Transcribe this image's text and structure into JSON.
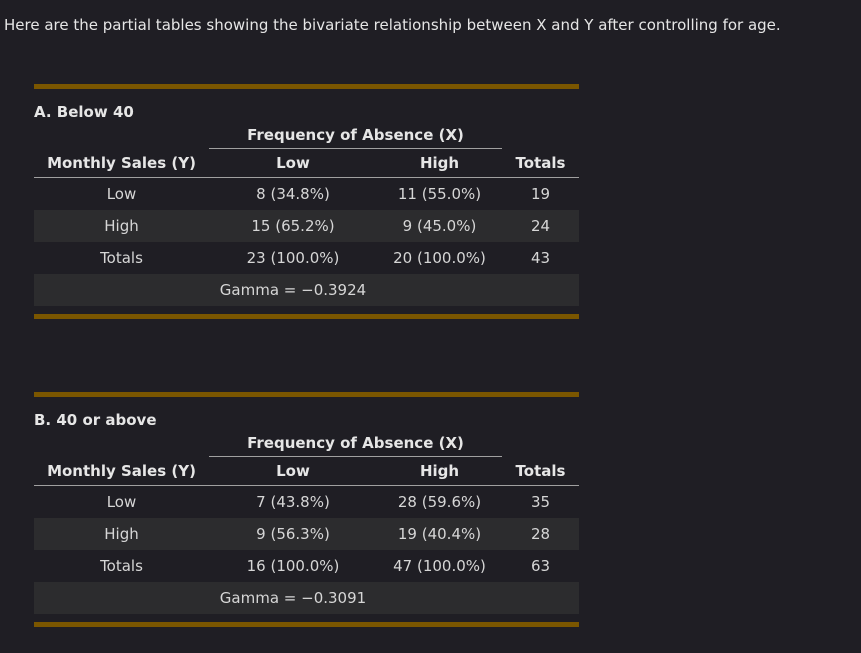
{
  "intro": "Here are the partial tables showing the bivariate relationship between X and Y after controlling for age.",
  "tables": [
    {
      "title": "A. Below 40",
      "spanner": "Frequency of Absence (X)",
      "headers": [
        "Monthly Sales (Y)",
        "Low",
        "High",
        "Totals"
      ],
      "rows": [
        [
          "Low",
          "8 (34.8%)",
          "11 (55.0%)",
          "19"
        ],
        [
          "High",
          "15 (65.2%)",
          "9 (45.0%)",
          "24"
        ],
        [
          "Totals",
          "23 (100.0%)",
          "20 (100.0%)",
          "43"
        ]
      ],
      "gamma": "Gamma = −0.3924"
    },
    {
      "title": "B. 40 or above",
      "spanner": "Frequency of Absence (X)",
      "headers": [
        "Monthly Sales (Y)",
        "Low",
        "High",
        "Totals"
      ],
      "rows": [
        [
          "Low",
          "7 (43.8%)",
          "28 (59.6%)",
          "35"
        ],
        [
          "High",
          "9 (56.3%)",
          "19 (40.4%)",
          "28"
        ],
        [
          "Totals",
          "16 (100.0%)",
          "47 (100.0%)",
          "63"
        ]
      ],
      "gamma": "Gamma = −0.3091"
    }
  ],
  "colors": {
    "background": "#1f1e24",
    "rule": "#7a5600",
    "shaded_row": "#2c2c2e"
  }
}
